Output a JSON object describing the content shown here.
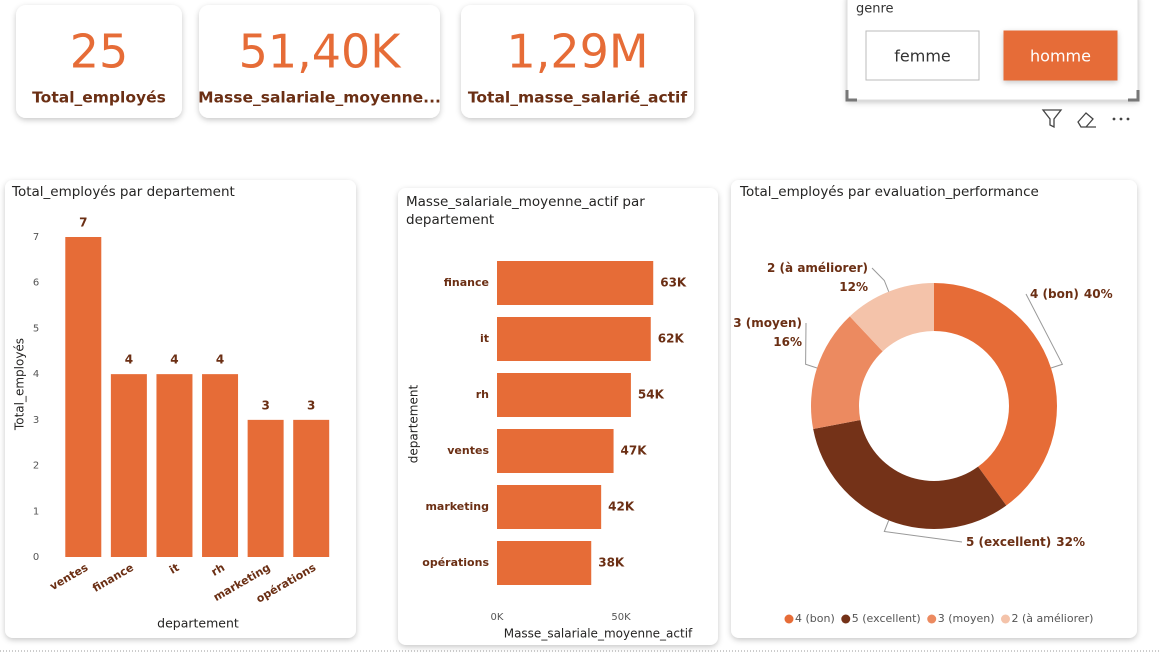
{
  "cards": [
    {
      "value": "25",
      "label": "Total_employés"
    },
    {
      "value": "51,40K",
      "label": "Masse_salariale_moyenne..."
    },
    {
      "value": "1,29M",
      "label": "Total_masse_salarié_actif"
    }
  ],
  "slicer": {
    "title": "genre",
    "options": [
      "femme",
      "homme"
    ],
    "selected": 1
  },
  "chart_data": [
    {
      "type": "bar",
      "title": "Total_employés par departement",
      "categories": [
        "ventes",
        "finance",
        "it",
        "rh",
        "marketing",
        "opérations"
      ],
      "values": [
        7,
        4,
        4,
        4,
        3,
        3
      ],
      "color": "#e66c37",
      "ylim": [
        0,
        7
      ],
      "yticks": [
        0,
        1,
        2,
        3,
        4,
        5,
        6,
        7
      ],
      "grid": false,
      "x_label": "departement",
      "y_label": "Total_employés"
    },
    {
      "type": "bar",
      "horizontal": true,
      "title": "Masse_salariale_moyenne_actif par departement",
      "categories": [
        "finance",
        "it",
        "rh",
        "ventes",
        "marketing",
        "opérations"
      ],
      "values": [
        63000,
        62000,
        54000,
        47000,
        42000,
        38000
      ],
      "value_labels": [
        "63K",
        "62K",
        "54K",
        "47K",
        "42K",
        "38K"
      ],
      "color": "#e66c37",
      "xlim": [
        0,
        80000
      ],
      "xticks": [
        {
          "value": 0,
          "label": "0K"
        },
        {
          "value": 50000,
          "label": "50K"
        }
      ],
      "grid": false,
      "x_label": "Masse_salariale_moyenne_actif",
      "y_label": "departement"
    },
    {
      "type": "donut",
      "title": "Total_employés par evaluation_performance",
      "categories": [
        "4 (bon)",
        "5 (excellent)",
        "3 (moyen)",
        "2 (à améliorer)"
      ],
      "values": [
        40,
        32,
        16,
        12
      ],
      "value_labels": [
        "40%",
        "32%",
        "16%",
        "12%"
      ],
      "colors": [
        "#e66c37",
        "#743218",
        "#ec8a60",
        "#f4c3aa"
      ],
      "legend": "bottom"
    }
  ]
}
